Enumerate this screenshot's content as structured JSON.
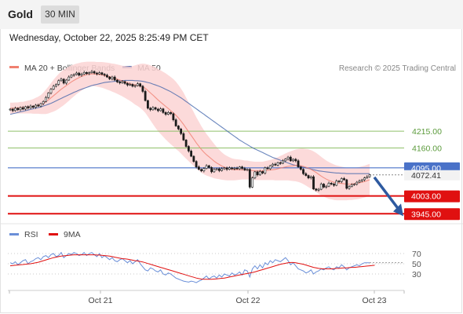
{
  "header": {
    "title": "Gold",
    "timeframe_button": "30 MIN",
    "datetime": "Wednesday, October 22, 2025 8:25:49 PM CET"
  },
  "colors": {
    "ma20": "#f08070",
    "bollinger_band": "#fbd4d4",
    "ma50": "#3a5fa8",
    "resistance": "#8fc06a",
    "pivot": "#4a72c8",
    "support": "#e01010",
    "price_tag": "#f2f2f2",
    "rsi": "#6a8fd8",
    "rsi_ma": "#e01010",
    "arrow": "#2e5aa0"
  },
  "chart_data": [
    {
      "type": "candlestick",
      "legend": {
        "items": [
          "MA 20 + Bollinger Bands",
          "MA 50"
        ],
        "placement": "top-left"
      },
      "credit": "Research © 2025 Trading Central",
      "x_ticks": [
        "Oct 21",
        "Oct 22",
        "Oct 23"
      ],
      "y_range": [
        3920,
        4400
      ],
      "last_price_label": "4072.41",
      "levels": [
        {
          "label": "4215.00",
          "value": 4215,
          "kind": "resistance"
        },
        {
          "label": "4160.00",
          "value": 4160,
          "kind": "resistance"
        },
        {
          "label": "4095.00",
          "value": 4095,
          "kind": "pivot"
        },
        {
          "label": "4003.00",
          "value": 4003,
          "kind": "support"
        },
        {
          "label": "3945.00",
          "value": 3945,
          "kind": "support"
        }
      ],
      "close": [
        4287,
        4282,
        4290,
        4285,
        4292,
        4287,
        4295,
        4291,
        4297,
        4293,
        4300,
        4297,
        4305,
        4312,
        4325,
        4340,
        4352,
        4362,
        4368,
        4380,
        4385,
        4372,
        4382,
        4392,
        4398,
        4400,
        4405,
        4398,
        4402,
        4407,
        4403,
        4406,
        4410,
        4405,
        4402,
        4406,
        4401,
        4398,
        4392,
        4386,
        4392,
        4382,
        4376,
        4373,
        4377,
        4371,
        4366,
        4368,
        4362,
        4364,
        4370,
        4362,
        4345,
        4315,
        4290,
        4285,
        4292,
        4287,
        4282,
        4288,
        4276,
        4270,
        4276,
        4272,
        4252,
        4232,
        4222,
        4207,
        4186,
        4165,
        4150,
        4133,
        4116,
        4098,
        4090,
        4085,
        4093,
        4102,
        4096,
        4082,
        4090,
        4092,
        4086,
        4092,
        4095,
        4090,
        4095,
        4092,
        4094,
        4092,
        4098,
        4093,
        4088,
        4090,
        4032,
        4062,
        4082,
        4072,
        4083,
        4078,
        4095,
        4092,
        4102,
        4107,
        4104,
        4112,
        4110,
        4118,
        4124,
        4130,
        4118,
        4123,
        4118,
        4098,
        4090,
        4076,
        4070,
        4062,
        4066,
        4026,
        4022,
        4025,
        4042,
        4032,
        4035,
        4045,
        4042,
        4038,
        4052,
        4050,
        4060,
        4056,
        4028,
        4034,
        4040,
        4042,
        4048,
        4052,
        4056,
        4062,
        4066,
        4072
      ],
      "ma20": [
        4290,
        4290,
        4291,
        4291,
        4292,
        4292,
        4293,
        4294,
        4295,
        4296,
        4298,
        4300,
        4302,
        4306,
        4311,
        4317,
        4324,
        4331,
        4338,
        4345,
        4352,
        4358,
        4364,
        4370,
        4376,
        4381,
        4386,
        4390,
        4394,
        4397,
        4400,
        4401,
        4402,
        4402,
        4401,
        4400,
        4399,
        4397,
        4395,
        4393,
        4390,
        4388,
        4385,
        4382,
        4379,
        4376,
        4373,
        4370,
        4368,
        4366,
        4365,
        4363,
        4360,
        4355,
        4348,
        4340,
        4333,
        4325,
        4317,
        4310,
        4303,
        4296,
        4289,
        4282,
        4275,
        4267,
        4258,
        4248,
        4237,
        4225,
        4213,
        4201,
        4189,
        4177,
        4166,
        4155,
        4146,
        4138,
        4131,
        4124,
        4117,
        4111,
        4106,
        4101,
        4097,
        4094,
        4092,
        4090,
        4089,
        4089,
        4089,
        4089,
        4088,
        4088,
        4087,
        4086,
        4085,
        4085,
        4085,
        4085,
        4086,
        4087,
        4088,
        4089,
        4090,
        4092,
        4094,
        4096,
        4098,
        4100,
        4101,
        4102,
        4103,
        4103,
        4102,
        4100,
        4097,
        4094,
        4090,
        4085,
        4080,
        4074,
        4068,
        4063,
        4058,
        4054,
        4051,
        4048,
        4046,
        4045,
        4044,
        4043,
        4042,
        4042,
        4042,
        4043,
        4044,
        4046,
        4048,
        4050,
        4053,
        4056
      ],
      "ma50": [
        4270,
        4272,
        4274,
        4276,
        4278,
        4280,
        4282,
        4284,
        4286,
        4288,
        4290,
        4292,
        4294,
        4297,
        4300,
        4303,
        4306,
        4310,
        4314,
        4318,
        4322,
        4326,
        4330,
        4334,
        4338,
        4342,
        4345,
        4349,
        4352,
        4355,
        4358,
        4361,
        4364,
        4366,
        4368,
        4370,
        4372,
        4374,
        4375,
        4376,
        4377,
        4378,
        4379,
        4380,
        4380,
        4381,
        4381,
        4381,
        4381,
        4380,
        4380,
        4379,
        4378,
        4376,
        4374,
        4372,
        4369,
        4366,
        4363,
        4360,
        4356,
        4352,
        4348,
        4344,
        4339,
        4334,
        4329,
        4324,
        4318,
        4312,
        4306,
        4300,
        4294,
        4288,
        4282,
        4276,
        4270,
        4264,
        4258,
        4252,
        4246,
        4240,
        4234,
        4228,
        4222,
        4216,
        4210,
        4204,
        4198,
        4192,
        4186,
        4181,
        4176,
        4171,
        4166,
        4161,
        4157,
        4153,
        4149,
        4145,
        4141,
        4137,
        4133,
        4129,
        4126,
        4123,
        4120,
        4117,
        4114,
        4111,
        4108,
        4105,
        4103,
        4101,
        4099,
        4097,
        4095,
        4093,
        4091,
        4089,
        4087,
        4085,
        4084,
        4083,
        4082,
        4081,
        4080,
        4079,
        4078,
        4078,
        4077,
        4077,
        4076,
        4076,
        4076,
        4076,
        4076,
        4076,
        4076,
        4076,
        4076,
        4076
      ],
      "bb_width": [
        18,
        18,
        18,
        18,
        19,
        19,
        20,
        21,
        22,
        24,
        26,
        28,
        31,
        35,
        40,
        44,
        48,
        52,
        55,
        57,
        58,
        58,
        57,
        56,
        54,
        52,
        50,
        48,
        46,
        44,
        42,
        41,
        40,
        40,
        40,
        41,
        42,
        43,
        44,
        45,
        46,
        47,
        48,
        49,
        50,
        52,
        54,
        56,
        60,
        64,
        68,
        72,
        76,
        80,
        85,
        90,
        95,
        99,
        102,
        104,
        106,
        108,
        109,
        110,
        110,
        110,
        108,
        106,
        104,
        100,
        96,
        92,
        88,
        84,
        80,
        76,
        72,
        68,
        64,
        60,
        56,
        52,
        48,
        45,
        42,
        40,
        38,
        36,
        35,
        34,
        33,
        32,
        31,
        31,
        30,
        30,
        30,
        30,
        30,
        30,
        31,
        32,
        33,
        34,
        36,
        38,
        40,
        42,
        44,
        46,
        48,
        50,
        52,
        54,
        56,
        58,
        60,
        62,
        63,
        64,
        64,
        64,
        63,
        62,
        61,
        60,
        59,
        58,
        57,
        56,
        55,
        54,
        53,
        52,
        52,
        52,
        52,
        52,
        52,
        52,
        52,
        52
      ]
    },
    {
      "type": "line",
      "legend": {
        "items": [
          "RSI",
          "9MA"
        ],
        "placement": "top-left"
      },
      "y_ticks": [
        "70",
        "50",
        "30"
      ],
      "y_range": [
        10,
        90
      ],
      "rsi": [
        52,
        50,
        54,
        48,
        52,
        56,
        58,
        50,
        54,
        56,
        60,
        62,
        58,
        64,
        66,
        62,
        68,
        70,
        64,
        66,
        72,
        62,
        66,
        70,
        68,
        72,
        70,
        66,
        68,
        72,
        66,
        70,
        72,
        68,
        64,
        70,
        62,
        66,
        62,
        58,
        62,
        56,
        54,
        58,
        60,
        56,
        52,
        56,
        50,
        54,
        58,
        50,
        44,
        38,
        36,
        42,
        40,
        36,
        34,
        38,
        30,
        28,
        32,
        30,
        26,
        22,
        20,
        18,
        16,
        15,
        14,
        16,
        15,
        13,
        16,
        18,
        22,
        26,
        20,
        24,
        26,
        22,
        28,
        24,
        30,
        28,
        26,
        32,
        28,
        30,
        34,
        28,
        38,
        36,
        24,
        40,
        46,
        40,
        48,
        42,
        52,
        48,
        56,
        52,
        58,
        56,
        54,
        58,
        62,
        56,
        48,
        52,
        46,
        40,
        38,
        36,
        32,
        34,
        38,
        30,
        34,
        36,
        40,
        38,
        42,
        44,
        40,
        38,
        44,
        42,
        48,
        44,
        38,
        42,
        44,
        46,
        48,
        46,
        50,
        52,
        52,
        52
      ],
      "rsi_ma": [
        46,
        46.5,
        47,
        47.5,
        48,
        48.5,
        49,
        49.5,
        50,
        51,
        52,
        53,
        54.5,
        56,
        57.5,
        59,
        60.5,
        62,
        63,
        64,
        65,
        65.5,
        66,
        66.5,
        67,
        67.5,
        67.5,
        67.5,
        67.5,
        67.5,
        67.5,
        67.5,
        67.5,
        67.5,
        67,
        67,
        66.5,
        66,
        65.5,
        65,
        64,
        63,
        62,
        61,
        60,
        59.5,
        59,
        58,
        57,
        56,
        55.5,
        54.5,
        53.5,
        52,
        50.5,
        49,
        47.5,
        46,
        44.5,
        43,
        41.5,
        40,
        38.5,
        37,
        35.5,
        34,
        32.5,
        31,
        29.5,
        28,
        26.5,
        25,
        23.5,
        22,
        21,
        20,
        19.5,
        19.5,
        19.5,
        19.5,
        20,
        20.5,
        21,
        21.5,
        22,
        23,
        24,
        25,
        26,
        27,
        28,
        29,
        30,
        31,
        32,
        33,
        34,
        35.5,
        37,
        38.5,
        40,
        41.5,
        43,
        44.5,
        46,
        47.5,
        49,
        50,
        51,
        52,
        52.5,
        52.5,
        52,
        51,
        50,
        49,
        47.5,
        46,
        44.5,
        43,
        42,
        41,
        40.5,
        40,
        40,
        40,
        40,
        40.5,
        41,
        41,
        41.5,
        42,
        42,
        42.5,
        43,
        43,
        43.5,
        44,
        44.5,
        45,
        45.5,
        46,
        46.5,
        47
      ]
    }
  ]
}
